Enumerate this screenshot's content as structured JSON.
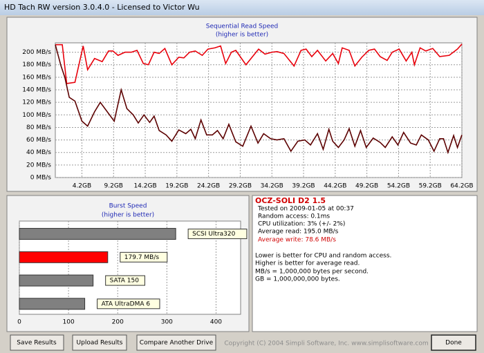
{
  "window": {
    "title": "HD Tach RW version 3.0.4.0 - Licensed to Victor Wu"
  },
  "chart_data": [
    {
      "type": "line",
      "title": "Sequential Read Speed",
      "subtitle": "(higher is better)",
      "xlim": [
        0,
        64.2
      ],
      "ylim": [
        0,
        215
      ],
      "grid": true,
      "xticks": [
        {
          "value": 4.2,
          "label": "4.2GB"
        },
        {
          "value": 9.2,
          "label": "9.2GB"
        },
        {
          "value": 14.2,
          "label": "14.2GB"
        },
        {
          "value": 19.2,
          "label": "19.2GB"
        },
        {
          "value": 24.2,
          "label": "24.2GB"
        },
        {
          "value": 29.2,
          "label": "29.2GB"
        },
        {
          "value": 34.2,
          "label": "34.2GB"
        },
        {
          "value": 39.2,
          "label": "39.2GB"
        },
        {
          "value": 44.2,
          "label": "44.2GB"
        },
        {
          "value": 49.2,
          "label": "49.2GB"
        },
        {
          "value": 54.2,
          "label": "54.2GB"
        },
        {
          "value": 59.2,
          "label": "59.2GB"
        },
        {
          "value": 64.2,
          "label": "64.2GB"
        }
      ],
      "yticks": [
        {
          "value": 0,
          "label": "0 MB/s"
        },
        {
          "value": 20,
          "label": "20 MB/s"
        },
        {
          "value": 40,
          "label": "40 MB/s"
        },
        {
          "value": 60,
          "label": "60 MB/s"
        },
        {
          "value": 80,
          "label": "80 MB/s"
        },
        {
          "value": 100,
          "label": "100 MB/s"
        },
        {
          "value": 120,
          "label": "120 MB/s"
        },
        {
          "value": 140,
          "label": "140 MB/s"
        },
        {
          "value": 160,
          "label": "160 MB/s"
        },
        {
          "value": 180,
          "label": "180 MB/s"
        },
        {
          "value": 200,
          "label": "200 MB/s"
        }
      ],
      "series": [
        {
          "color": "#e8000b",
          "x": [
            0.0,
            1.1,
            1.8,
            3.1,
            4.4,
            5.1,
            6.2,
            7.4,
            8.4,
            9.1,
            9.9,
            11.0,
            12.0,
            12.9,
            13.9,
            14.7,
            15.6,
            16.4,
            17.3,
            18.4,
            19.5,
            20.3,
            21.2,
            22.1,
            23.2,
            24.1,
            25.2,
            26.1,
            26.9,
            27.8,
            28.5,
            30.1,
            32.1,
            33.1,
            34.2,
            35.0,
            36.1,
            37.7,
            38.8,
            39.6,
            40.5,
            41.4,
            42.7,
            43.8,
            44.7,
            45.3,
            46.4,
            47.3,
            48.4,
            49.5,
            50.4,
            51.3,
            52.4,
            53.2,
            54.3,
            55.4,
            56.3,
            56.7,
            57.6,
            58.5,
            59.6,
            60.7,
            62.2,
            63.5,
            64.2
          ],
          "values": [
            212,
            212,
            150,
            152,
            210,
            172,
            190,
            185,
            202,
            202,
            195,
            200,
            200,
            203,
            182,
            180,
            200,
            198,
            206,
            180,
            192,
            191,
            200,
            202,
            195,
            205,
            207,
            210,
            182,
            200,
            203,
            180,
            205,
            197,
            200,
            201,
            198,
            178,
            203,
            205,
            193,
            203,
            186,
            198,
            182,
            207,
            203,
            178,
            192,
            203,
            205,
            193,
            187,
            200,
            205,
            186,
            200,
            180,
            207,
            202,
            206,
            193,
            195,
            205,
            213
          ]
        },
        {
          "color": "#5c0000",
          "x": [
            0.0,
            0.9,
            1.5,
            2.2,
            3.1,
            4.2,
            5.1,
            6.2,
            7.1,
            9.3,
            10.4,
            11.3,
            12.3,
            13.1,
            14.0,
            14.9,
            15.6,
            16.4,
            17.5,
            18.4,
            19.5,
            20.6,
            21.4,
            22.1,
            23.0,
            23.9,
            24.8,
            25.6,
            26.5,
            27.4,
            28.5,
            29.6,
            30.9,
            32.0,
            32.9,
            34.0,
            35.0,
            36.1,
            37.2,
            38.3,
            39.4,
            40.3,
            41.4,
            42.3,
            43.2,
            43.8,
            44.7,
            45.6,
            46.4,
            47.3,
            48.2,
            49.1,
            50.2,
            51.3,
            52.1,
            53.2,
            54.1,
            55.0,
            56.1,
            57.0,
            57.8,
            58.9,
            59.8,
            60.7,
            61.3,
            62.0,
            62.9,
            63.5,
            64.2
          ],
          "values": [
            212,
            178,
            160,
            128,
            122,
            90,
            82,
            105,
            120,
            90,
            140,
            110,
            100,
            87,
            100,
            88,
            98,
            75,
            68,
            58,
            76,
            70,
            77,
            62,
            92,
            68,
            68,
            75,
            62,
            85,
            57,
            50,
            82,
            55,
            70,
            62,
            60,
            62,
            42,
            58,
            60,
            52,
            70,
            45,
            77,
            58,
            48,
            60,
            78,
            50,
            75,
            48,
            63,
            56,
            48,
            65,
            52,
            72,
            55,
            52,
            68,
            60,
            42,
            62,
            62,
            40,
            67,
            48,
            68
          ]
        }
      ]
    },
    {
      "type": "hbar",
      "title": "Burst Speed",
      "subtitle": "(higher is better)",
      "xlim": [
        0,
        450
      ],
      "xticks": [
        0,
        100,
        200,
        300,
        400
      ],
      "grid": true,
      "categories": [
        "SCSI Ultra320",
        null,
        "SATA 150",
        "ATA UltraDMA 6"
      ],
      "values": [
        318,
        179.7,
        150,
        133
      ],
      "value_labels": [
        null,
        "179.7 MB/s",
        null,
        null
      ],
      "colors": [
        "#808080",
        "#ff0000",
        "#808080",
        "#808080"
      ]
    }
  ],
  "info": {
    "drive": "OCZ-SOLI D2 1.5",
    "lines": [
      "Tested on 2009-01-05 at 00:37",
      "Random access: 0.1ms",
      "CPU utilization: 3% (+/- 2%)",
      "Average read: 195.0 MB/s",
      "Average write: 78.6 MB/s"
    ],
    "notes": [
      "Lower is better for CPU and random access.",
      "Higher is better for average read.",
      "MB/s = 1,000,000 bytes per second.",
      "GB = 1,000,000,000 bytes."
    ]
  },
  "buttons": [
    "Save Results",
    "Upload Results",
    "Compare Another Drive",
    "Done"
  ],
  "footer": "Copyright (C) 2004 Simpli Software, Inc. www.simplisoftware.com"
}
